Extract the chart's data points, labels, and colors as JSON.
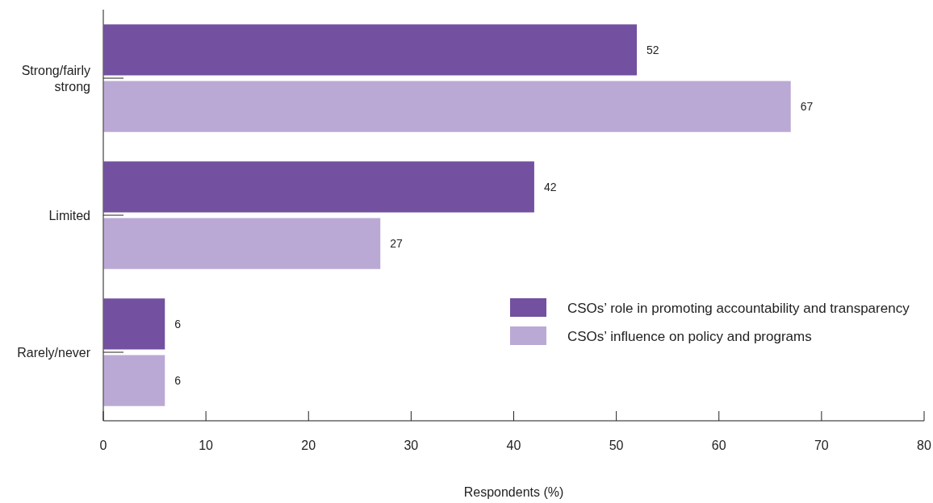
{
  "chart_data": {
    "type": "bar",
    "orientation": "horizontal",
    "categories": [
      "Strong/fairly strong",
      "Limited",
      "Rarely/never"
    ],
    "series": [
      {
        "name": "CSOs’ role in promoting accountability and transparency",
        "color": "#7350a0",
        "values": [
          52,
          42,
          6
        ]
      },
      {
        "name": "CSOs’ influence on policy and programs",
        "color": "#baa9d4",
        "values": [
          67,
          27,
          6
        ]
      }
    ],
    "xlim": [
      0,
      80
    ],
    "xticks": [
      0,
      10,
      20,
      30,
      40,
      50,
      60,
      70,
      80
    ],
    "xlabel": "Respondents (%)",
    "data_labels": true,
    "legend": "right"
  }
}
